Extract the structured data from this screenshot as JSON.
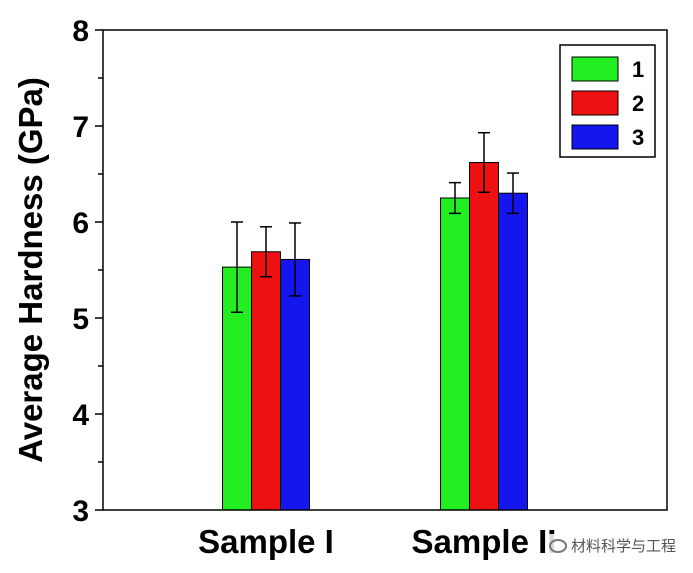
{
  "chart_data": {
    "type": "bar",
    "title": "",
    "xlabel": "",
    "ylabel": "Average Hardness (GPa)",
    "ylim": [
      3,
      8
    ],
    "yticks": [
      "3",
      "4",
      "5",
      "6",
      "7",
      "8"
    ],
    "categories": [
      "Sample I",
      "Sample II"
    ],
    "series": [
      {
        "name": "1",
        "color": "#22ee22",
        "values": [
          5.53,
          6.25
        ],
        "errors": [
          0.47,
          0.16
        ]
      },
      {
        "name": "2",
        "color": "#ee1111",
        "values": [
          5.69,
          6.62
        ],
        "errors": [
          0.26,
          0.31
        ]
      },
      {
        "name": "3",
        "color": "#1515ee",
        "values": [
          5.61,
          6.3
        ],
        "errors": [
          0.38,
          0.21
        ]
      }
    ],
    "legend_position": "top-right",
    "grid": false
  },
  "watermark": "材料科学与工程"
}
